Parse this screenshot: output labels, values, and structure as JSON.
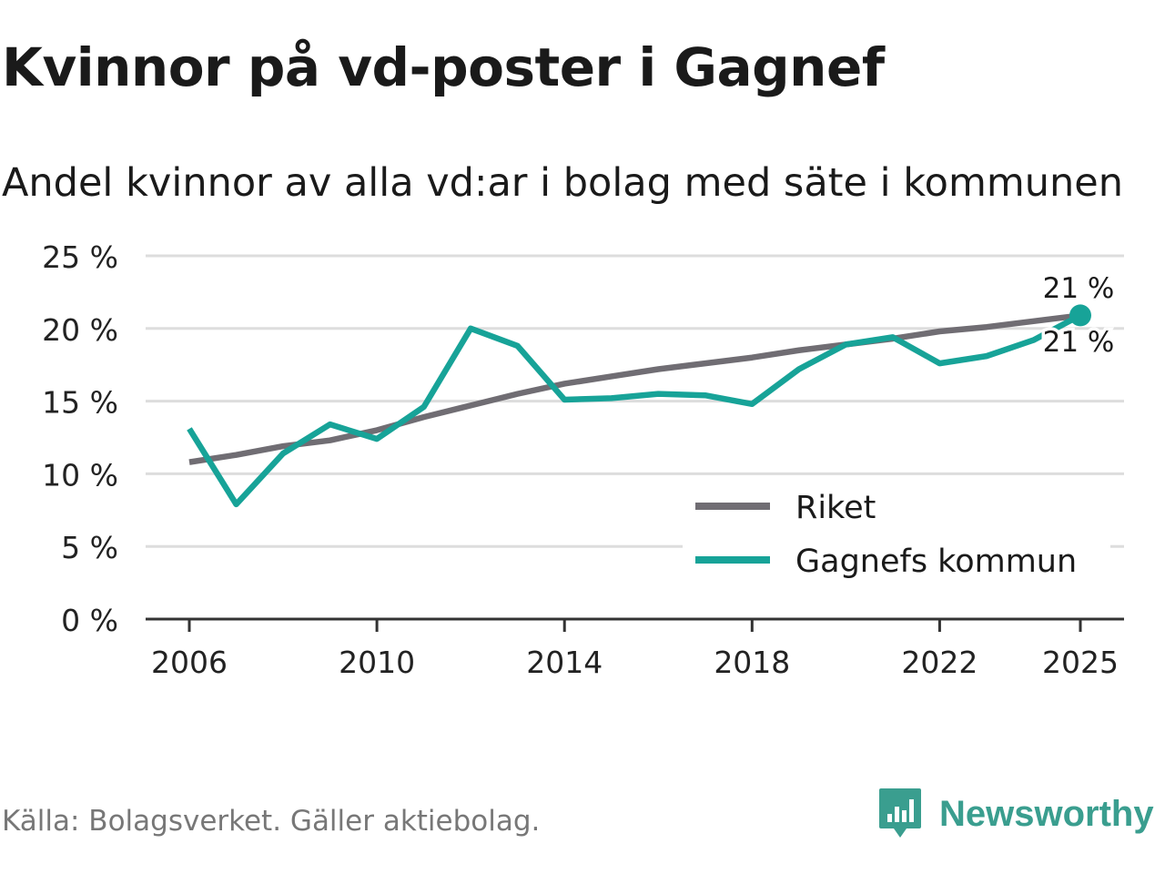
{
  "header": {
    "title": "Kvinnor på vd-poster i Gagnef",
    "subtitle": "Andel kvinnor av alla vd:ar i bolag med säte i kommunen"
  },
  "footer": {
    "source": "Källa: Bolagsverket. Gäller aktiebolag.",
    "brand": "Newsworthy",
    "brand_icon": "bar-chart-speech-bubble-icon"
  },
  "colors": {
    "riket": "#706d73",
    "gagnef": "#17a398",
    "grid": "#dddddd",
    "axis": "#333333",
    "brand": "#3a9e8f"
  },
  "chart_data": {
    "type": "line",
    "title": "Kvinnor på vd-poster i Gagnef",
    "subtitle": "Andel kvinnor av alla vd:ar i bolag med säte i kommunen",
    "xlabel": "",
    "ylabel": "",
    "x": [
      2006,
      2007,
      2008,
      2009,
      2010,
      2011,
      2012,
      2013,
      2014,
      2015,
      2016,
      2017,
      2018,
      2019,
      2020,
      2021,
      2022,
      2023,
      2024,
      2025
    ],
    "xlim": [
      2006,
      2025
    ],
    "xticks": [
      2006,
      2010,
      2014,
      2018,
      2022,
      2025
    ],
    "xtick_labels": [
      "2006",
      "2010",
      "2014",
      "2018",
      "2022",
      "2025"
    ],
    "ylim": [
      0,
      25
    ],
    "yticks": [
      0,
      5,
      10,
      15,
      20,
      25
    ],
    "ytick_labels": [
      "0 %",
      "5 %",
      "10 %",
      "15 %",
      "20 %",
      "25 %"
    ],
    "grid": true,
    "legend_position": "bottom-right",
    "series": [
      {
        "name": "Riket",
        "values": [
          10.8,
          11.3,
          11.9,
          12.3,
          13.0,
          13.9,
          14.7,
          15.5,
          16.2,
          16.7,
          17.2,
          17.6,
          18.0,
          18.5,
          18.9,
          19.3,
          19.8,
          20.1,
          20.5,
          20.9
        ],
        "end_label": "21 %"
      },
      {
        "name": "Gagnefs kommun",
        "values": [
          13.1,
          7.9,
          11.4,
          13.4,
          12.4,
          14.6,
          20.0,
          18.8,
          15.1,
          15.2,
          15.5,
          15.4,
          14.8,
          17.2,
          18.9,
          19.4,
          17.6,
          18.1,
          19.2,
          20.9
        ],
        "end_label": "21 %"
      }
    ]
  }
}
